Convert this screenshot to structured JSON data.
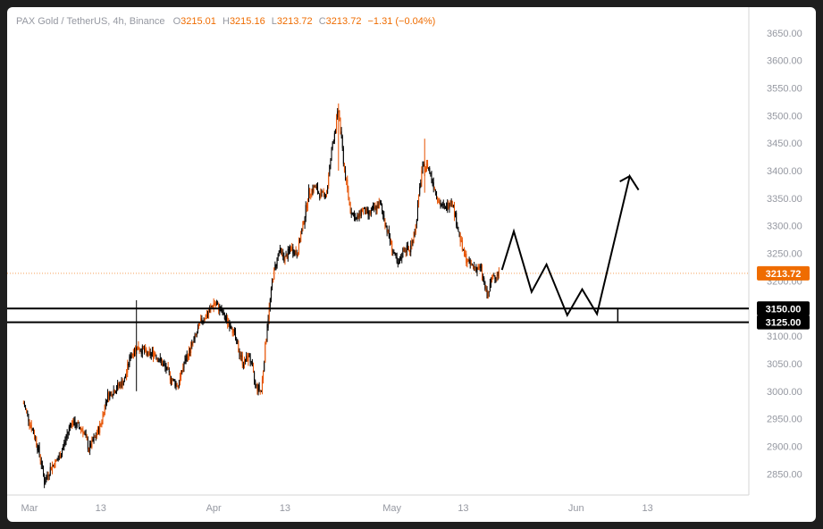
{
  "legend": {
    "symbol": "PAX Gold / TetherUS, 4h, Binance",
    "open_label": "O",
    "open": "3215.01",
    "high_label": "H",
    "high": "3215.16",
    "low_label": "L",
    "low": "3213.72",
    "close_label": "C",
    "close": "3213.72",
    "change": "−1.31 (−0.04%)"
  },
  "colors": {
    "background": "#ffffff",
    "frame": "#1e1e1e",
    "candle": "#000000",
    "candle_accent": "#e65100",
    "price_line": "#f5a05a",
    "price_tag": "#ef6c00",
    "level_tag": "#000000",
    "axis_text": "#9598a1"
  },
  "chart_data": {
    "type": "candlestick",
    "title": "PAX Gold / TetherUS, 4h, Binance",
    "ylim": [
      2815,
      3685
    ],
    "y_ticks": [
      2850,
      2900,
      2950,
      3000,
      3050,
      3100,
      3150,
      3200,
      3250,
      3300,
      3350,
      3400,
      3450,
      3500,
      3550,
      3600,
      3650
    ],
    "y_tick_labels": [
      "2850.00",
      "2900.00",
      "2950.00",
      "3000.00",
      "3050.00",
      "3100.00",
      "3150.00",
      "3200.00",
      "3250.00",
      "3300.00",
      "3350.00",
      "3400.00",
      "3450.00",
      "3500.00",
      "3550.00",
      "3600.00",
      "3650.00"
    ],
    "x_ticks": [
      {
        "day": 0,
        "label": "Mar"
      },
      {
        "day": 12,
        "label": "13"
      },
      {
        "day": 31,
        "label": "Apr"
      },
      {
        "day": 43,
        "label": "13"
      },
      {
        "day": 61,
        "label": "May"
      },
      {
        "day": 73,
        "label": "13"
      },
      {
        "day": 92,
        "label": "Jun"
      },
      {
        "day": 104,
        "label": "13"
      }
    ],
    "xlim_days": [
      -1.5,
      112
    ],
    "price_path": [
      [
        -1.0,
        2978
      ],
      [
        0.0,
        2945
      ],
      [
        1.0,
        2915
      ],
      [
        2.0,
        2870
      ],
      [
        2.5,
        2835
      ],
      [
        3.5,
        2860
      ],
      [
        5.0,
        2880
      ],
      [
        6.0,
        2910
      ],
      [
        7.0,
        2945
      ],
      [
        9.0,
        2930
      ],
      [
        10.0,
        2895
      ],
      [
        11.0,
        2915
      ],
      [
        12.0,
        2940
      ],
      [
        13.0,
        2990
      ],
      [
        14.0,
        3000
      ],
      [
        15.0,
        3010
      ],
      [
        16.0,
        3020
      ],
      [
        17.0,
        3065
      ],
      [
        18.0,
        3080
      ],
      [
        19.0,
        3075
      ],
      [
        20.0,
        3065
      ],
      [
        21.0,
        3070
      ],
      [
        22.0,
        3055
      ],
      [
        23.0,
        3040
      ],
      [
        24.0,
        3020
      ],
      [
        25.0,
        3010
      ],
      [
        26.0,
        3050
      ],
      [
        27.0,
        3075
      ],
      [
        28.0,
        3100
      ],
      [
        29.0,
        3130
      ],
      [
        30.0,
        3140
      ],
      [
        31.0,
        3160
      ],
      [
        32.0,
        3150
      ],
      [
        33.0,
        3130
      ],
      [
        34.0,
        3120
      ],
      [
        35.0,
        3080
      ],
      [
        36.0,
        3050
      ],
      [
        37.0,
        3065
      ],
      [
        38.0,
        3010
      ],
      [
        39.0,
        3000
      ],
      [
        40.0,
        3120
      ],
      [
        41.0,
        3210
      ],
      [
        42.0,
        3255
      ],
      [
        43.0,
        3240
      ],
      [
        44.0,
        3260
      ],
      [
        45.0,
        3250
      ],
      [
        46.0,
        3300
      ],
      [
        47.0,
        3360
      ],
      [
        48.0,
        3370
      ],
      [
        49.0,
        3355
      ],
      [
        50.0,
        3360
      ],
      [
        51.0,
        3450
      ],
      [
        52.0,
        3510
      ],
      [
        53.0,
        3400
      ],
      [
        54.0,
        3330
      ],
      [
        55.0,
        3310
      ],
      [
        56.0,
        3330
      ],
      [
        57.0,
        3320
      ],
      [
        58.0,
        3330
      ],
      [
        59.0,
        3340
      ],
      [
        60.0,
        3300
      ],
      [
        61.0,
        3260
      ],
      [
        62.0,
        3225
      ],
      [
        63.0,
        3260
      ],
      [
        64.0,
        3255
      ],
      [
        65.0,
        3300
      ],
      [
        66.0,
        3400
      ],
      [
        67.0,
        3410
      ],
      [
        68.0,
        3375
      ],
      [
        69.0,
        3340
      ],
      [
        70.0,
        3330
      ],
      [
        71.0,
        3350
      ],
      [
        72.0,
        3300
      ],
      [
        73.0,
        3250
      ],
      [
        74.0,
        3230
      ],
      [
        75.0,
        3225
      ],
      [
        76.0,
        3220
      ],
      [
        77.0,
        3170
      ],
      [
        78.0,
        3210
      ],
      [
        79.0,
        3214
      ]
    ],
    "annotations": {
      "current_price": {
        "value": 3213.72,
        "label": "3213.72"
      },
      "support_zone": {
        "upper": 3150,
        "lower": 3125,
        "upper_label": "3150.00",
        "lower_label": "3125.00",
        "from_day": -1.5,
        "to_day": 112
      },
      "projection_path": [
        [
          79.5,
          3220
        ],
        [
          81.5,
          3290
        ],
        [
          84.5,
          3180
        ],
        [
          87.0,
          3230
        ],
        [
          90.5,
          3138
        ],
        [
          93.0,
          3185
        ],
        [
          95.5,
          3140
        ],
        [
          101.0,
          3390
        ],
        [
          102.5,
          3365
        ]
      ],
      "zone_end_marker_day": 99
    }
  }
}
